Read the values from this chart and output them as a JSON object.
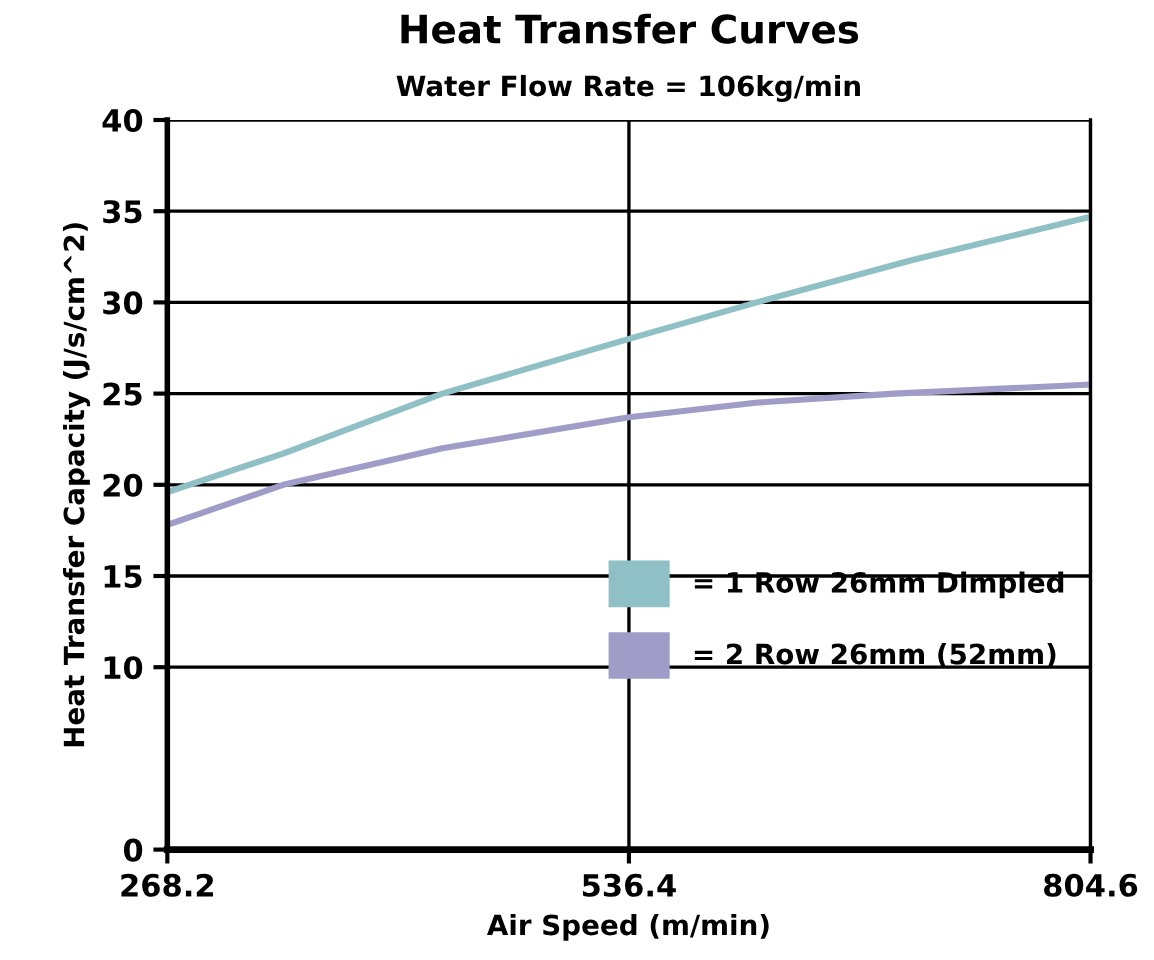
{
  "chart_data": {
    "type": "line",
    "title": "Heat Transfer Curves",
    "subtitle": "Water Flow Rate = 106kg/min",
    "xlabel": "Air Speed (m/min)",
    "ylabel": "Heat Transfer Capacity (J/s/cm^2)",
    "xlim": [
      268.2,
      804.6
    ],
    "xticks": [
      268.2,
      536.4,
      804.6
    ],
    "ylim": [
      0,
      40
    ],
    "yticks": [
      0,
      10,
      15,
      20,
      25,
      30,
      35,
      40
    ],
    "grid": true,
    "legend": "bottom right",
    "line_style": "solid",
    "series": [
      {
        "name": "= 1 Row 26mm Dimpled",
        "color": "#8fc0c5",
        "x": [
          268.2,
          335,
          428,
          536.4,
          610.6,
          700,
          804.6
        ],
        "values": [
          19.6,
          21.7,
          25,
          28.0,
          30,
          32.3,
          34.7
        ]
      },
      {
        "name": "= 2 Row 26mm (52mm)",
        "color": "#a09cc8",
        "x": [
          268.2,
          335.5,
          428,
          536.4,
          610,
          690.5,
          804.6
        ],
        "values": [
          17.8,
          20,
          22.0,
          23.7,
          24.5,
          25,
          25.5
        ]
      }
    ]
  }
}
